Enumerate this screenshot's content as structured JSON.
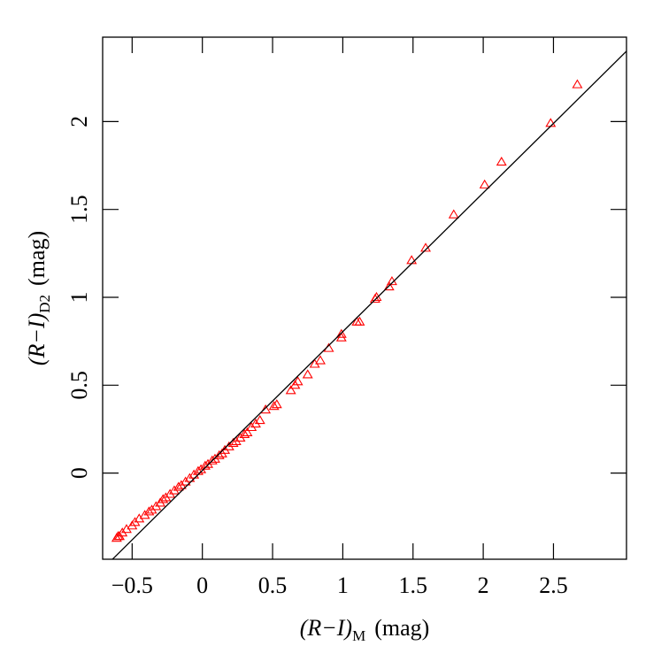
{
  "chart_data": {
    "type": "scatter",
    "xlabel": "(R−I)",
    "xlabel_sub": "M",
    "xlabel_unit": "(mag)",
    "ylabel": "(R−I)",
    "ylabel_sub": "D2",
    "ylabel_unit": "(mag)",
    "xlim": [
      -0.71,
      3.02
    ],
    "ylim": [
      -0.49,
      2.48
    ],
    "xticks": [
      {
        "value": -0.5,
        "label": "−0.5"
      },
      0,
      0.5,
      1,
      1.5,
      2,
      2.5
    ],
    "yticks": [
      0,
      0.5,
      1,
      1.5,
      2
    ],
    "series": [
      {
        "color": "#ff0000",
        "marker": "triangle",
        "x": [
          2.67,
          2.48,
          2.13,
          2.01,
          1.79,
          1.59,
          1.49,
          1.35,
          1.33,
          1.24,
          1.23,
          1.12,
          1.1,
          0.99,
          0.99,
          0.9,
          0.84,
          0.8,
          0.75,
          0.68,
          0.66,
          0.63,
          0.53,
          0.51,
          0.45,
          -0.61,
          -0.6,
          -0.59,
          -0.57,
          -0.54,
          -0.5,
          -0.48,
          -0.45,
          -0.41,
          -0.38,
          -0.36,
          -0.33,
          -0.3,
          -0.28,
          -0.26,
          -0.23,
          -0.2,
          -0.17,
          -0.15,
          -0.12,
          -0.09,
          -0.06,
          -0.03,
          -0.01,
          0.02,
          0.04,
          0.07,
          0.09,
          0.12,
          0.14,
          0.16,
          0.19,
          0.22,
          0.24,
          0.27,
          0.3,
          0.32,
          0.35,
          0.38,
          0.41
        ],
        "values": [
          2.21,
          1.99,
          1.77,
          1.64,
          1.47,
          1.28,
          1.21,
          1.09,
          1.06,
          1.0,
          0.99,
          0.86,
          0.86,
          0.79,
          0.77,
          0.71,
          0.64,
          0.62,
          0.56,
          0.52,
          0.5,
          0.47,
          0.39,
          0.38,
          0.36,
          -0.37,
          -0.36,
          -0.36,
          -0.34,
          -0.32,
          -0.3,
          -0.28,
          -0.26,
          -0.24,
          -0.22,
          -0.21,
          -0.19,
          -0.17,
          -0.15,
          -0.14,
          -0.12,
          -0.1,
          -0.08,
          -0.07,
          -0.05,
          -0.03,
          -0.01,
          0.01,
          0.02,
          0.04,
          0.05,
          0.07,
          0.08,
          0.1,
          0.11,
          0.13,
          0.15,
          0.17,
          0.18,
          0.2,
          0.22,
          0.23,
          0.26,
          0.28,
          0.3
        ]
      },
      {
        "color": "#000000",
        "style": "line",
        "x": [
          -0.64,
          3.02
        ],
        "values": [
          -0.49,
          2.4
        ]
      }
    ]
  }
}
